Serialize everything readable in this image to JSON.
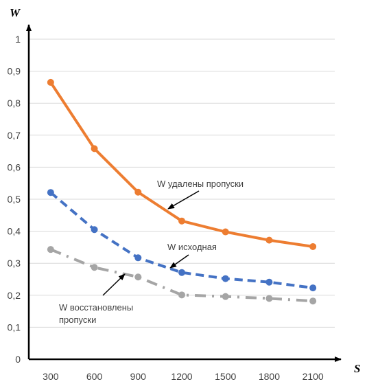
{
  "chart_data": {
    "type": "line",
    "title": "",
    "xlabel": "S",
    "ylabel": "W",
    "x": [
      300,
      600,
      900,
      1200,
      1500,
      1800,
      2100
    ],
    "xticks": [
      "300",
      "600",
      "900",
      "1200",
      "1500",
      "1800",
      "2100"
    ],
    "ylim": [
      0,
      1
    ],
    "yticks": [
      "0",
      "0,1",
      "0,2",
      "0,3",
      "0,4",
      "0,5",
      "0,6",
      "0,7",
      "0,8",
      "0,9",
      "1"
    ],
    "grid": true,
    "legend": "none",
    "series": [
      {
        "name": "W удалены пропуски",
        "values": [
          0.865,
          0.658,
          0.522,
          0.432,
          0.398,
          0.372,
          0.352
        ],
        "color": "#ED7D31",
        "style": "solid"
      },
      {
        "name": "W исходная",
        "values": [
          0.521,
          0.405,
          0.317,
          0.271,
          0.252,
          0.241,
          0.223
        ],
        "color": "#4472C4",
        "style": "dashed"
      },
      {
        "name": "W восстановлены пропуски",
        "values": [
          0.343,
          0.287,
          0.257,
          0.201,
          0.196,
          0.19,
          0.182
        ],
        "color": "#A5A5A5",
        "style": "dashdot"
      }
    ],
    "annotations": [
      {
        "lines": [
          "W удалены пропуски"
        ],
        "series": 0
      },
      {
        "lines": [
          "W исходная"
        ],
        "series": 1
      },
      {
        "lines": [
          "W восстановлены",
          "пропуски"
        ],
        "series": 2
      }
    ]
  }
}
